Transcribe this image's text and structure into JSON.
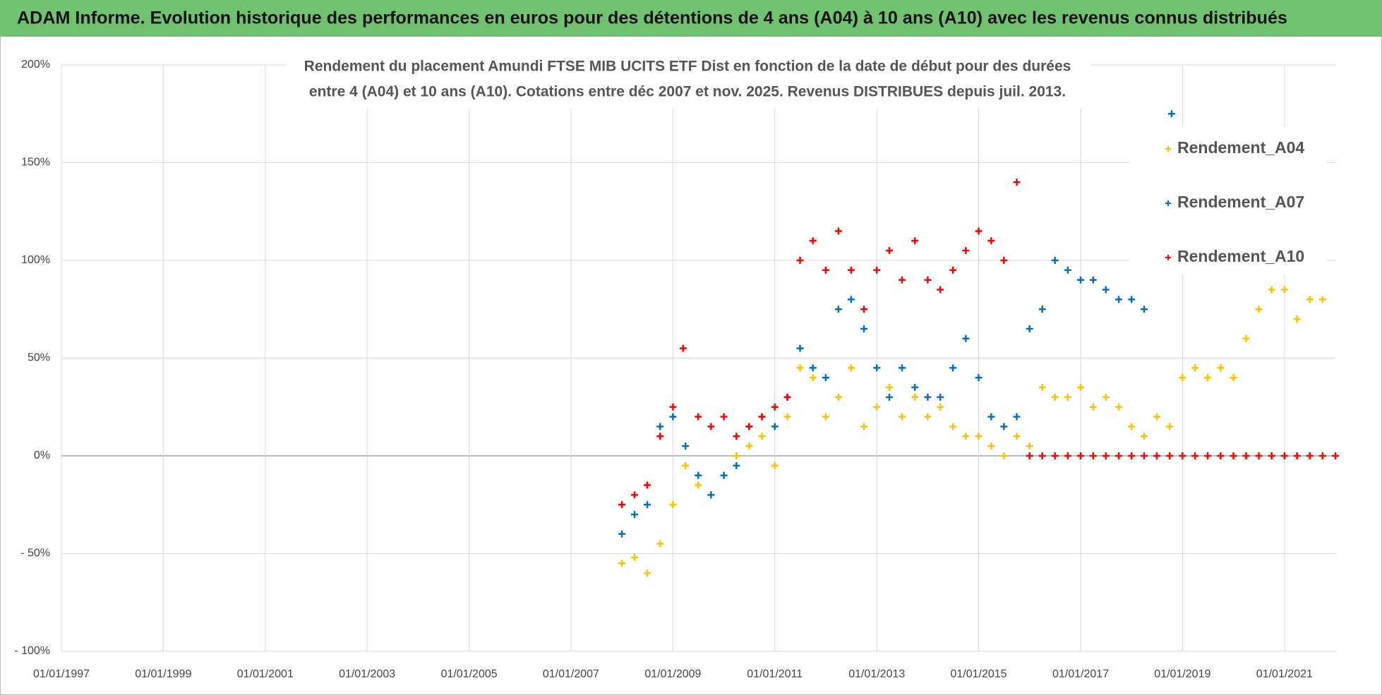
{
  "chart_data": {
    "type": "scatter",
    "title": "ADAM Informe. Evolution historique des performances en euros pour des détentions de 4 ans (A04) à 10 ans (A10) avec les revenus connus distribués",
    "subtitle": [
      "Rendement du placement Amundi FTSE MIB UCITS ETF Dist en fonction de la date de début pour des durées",
      "entre 4 (A04) et 10 ans (A10). Cotations entre déc 2007 et nov. 2025. Revenus DISTRIBUES depuis juil. 2013."
    ],
    "xlim": [
      "1997-01-01",
      "2022-01-01"
    ],
    "xticks": [
      {
        "value": "1997-01-01",
        "label": "01/01/1997"
      },
      {
        "value": "1999-01-01",
        "label": "01/01/1999"
      },
      {
        "value": "2001-01-01",
        "label": "01/01/2001"
      },
      {
        "value": "2003-01-01",
        "label": "01/01/2003"
      },
      {
        "value": "2005-01-01",
        "label": "01/01/2005"
      },
      {
        "value": "2007-01-01",
        "label": "01/01/2007"
      },
      {
        "value": "2009-01-01",
        "label": "01/01/2009"
      },
      {
        "value": "2011-01-01",
        "label": "01/01/2011"
      },
      {
        "value": "2013-01-01",
        "label": "01/01/2013"
      },
      {
        "value": "2015-01-01",
        "label": "01/01/2015"
      },
      {
        "value": "2017-01-01",
        "label": "01/01/2017"
      },
      {
        "value": "2019-01-01",
        "label": "01/01/2019"
      },
      {
        "value": "2021-01-01",
        "label": "01/01/2021"
      }
    ],
    "ylim": [
      -100,
      200
    ],
    "yticks": [
      {
        "value": -100,
        "label": "- 100%"
      },
      {
        "value": -50,
        "label": "- 50%"
      },
      {
        "value": 0,
        "label": "0%"
      },
      {
        "value": 50,
        "label": "50%"
      },
      {
        "value": 100,
        "label": "100%"
      },
      {
        "value": 150,
        "label": "150%"
      },
      {
        "value": 200,
        "label": "200%"
      }
    ],
    "grid": true,
    "legend": "upper right",
    "series": [
      {
        "name": "Rendement_A04",
        "color": "#ffc000",
        "x": [
          "2008-01-01",
          "2008-04-01",
          "2008-07-01",
          "2008-10-01",
          "2009-01-01",
          "2009-04-01",
          "2009-07-01",
          "2009-10-01",
          "2010-01-01",
          "2010-04-01",
          "2010-07-01",
          "2010-10-01",
          "2011-01-01",
          "2011-04-01",
          "2011-07-01",
          "2011-10-01",
          "2012-01-01",
          "2012-04-01",
          "2012-07-01",
          "2012-10-01",
          "2013-01-01",
          "2013-04-01",
          "2013-07-01",
          "2013-10-01",
          "2014-01-01",
          "2014-04-01",
          "2014-07-01",
          "2014-10-01",
          "2015-01-01",
          "2015-04-01",
          "2015-07-01",
          "2015-10-01",
          "2016-01-01",
          "2016-04-01",
          "2016-07-01",
          "2016-10-01",
          "2017-01-01",
          "2017-04-01",
          "2017-07-01",
          "2017-10-01",
          "2018-01-01",
          "2018-04-01",
          "2018-07-01",
          "2018-10-01",
          "2019-01-01",
          "2019-04-01",
          "2019-07-01",
          "2019-10-01",
          "2020-01-01",
          "2020-04-01",
          "2020-07-01",
          "2020-10-01",
          "2021-01-01",
          "2021-04-01",
          "2021-07-01",
          "2021-10-01"
        ],
        "values": [
          -55,
          -52,
          -60,
          -45,
          -25,
          -5,
          -15,
          -20,
          -10,
          0,
          5,
          10,
          -5,
          20,
          45,
          40,
          20,
          30,
          45,
          15,
          25,
          35,
          20,
          30,
          20,
          25,
          15,
          10,
          10,
          5,
          0,
          10,
          5,
          35,
          30,
          30,
          35,
          25,
          30,
          25,
          15,
          10,
          20,
          15,
          40,
          45,
          40,
          45,
          40,
          60,
          75,
          85,
          85,
          70,
          80,
          80
        ]
      },
      {
        "name": "Rendement_A07",
        "color": "#0070c0",
        "x": [
          "2008-01-01",
          "2008-04-01",
          "2008-07-01",
          "2008-10-01",
          "2009-01-01",
          "2009-04-01",
          "2009-07-01",
          "2009-10-01",
          "2010-01-01",
          "2010-04-01",
          "2010-07-01",
          "2010-10-01",
          "2011-01-01",
          "2011-04-01",
          "2011-07-01",
          "2011-10-01",
          "2012-01-01",
          "2012-04-01",
          "2012-07-01",
          "2012-10-01",
          "2013-01-01",
          "2013-04-01",
          "2013-07-01",
          "2013-10-01",
          "2014-01-01",
          "2014-04-01",
          "2014-07-01",
          "2014-10-01",
          "2015-01-01",
          "2015-04-01",
          "2015-07-01",
          "2015-10-01",
          "2016-01-01",
          "2016-04-01",
          "2016-07-01",
          "2016-10-01",
          "2017-01-01",
          "2017-04-01",
          "2017-07-01",
          "2017-10-01",
          "2018-01-01",
          "2018-04-01",
          "2018-10-15"
        ],
        "values": [
          -40,
          -30,
          -25,
          15,
          20,
          5,
          -10,
          -20,
          -10,
          -5,
          15,
          20,
          15,
          30,
          55,
          45,
          40,
          75,
          80,
          65,
          45,
          30,
          45,
          35,
          30,
          30,
          45,
          60,
          40,
          20,
          15,
          20,
          65,
          75,
          100,
          95,
          90,
          90,
          85,
          80,
          80,
          75,
          175
        ]
      },
      {
        "name": "Rendement_A10",
        "color": "#ff0000",
        "x": [
          "2008-01-01",
          "2008-04-01",
          "2008-07-01",
          "2008-10-01",
          "2009-01-01",
          "2009-03-15",
          "2009-07-01",
          "2009-10-01",
          "2010-01-01",
          "2010-04-01",
          "2010-07-01",
          "2010-10-01",
          "2011-01-01",
          "2011-04-01",
          "2011-07-01",
          "2011-10-01",
          "2012-01-01",
          "2012-04-01",
          "2012-07-01",
          "2012-10-01",
          "2013-01-01",
          "2013-04-01",
          "2013-07-01",
          "2013-10-01",
          "2014-01-01",
          "2014-04-01",
          "2014-07-01",
          "2014-10-01",
          "2015-01-01",
          "2015-04-01",
          "2015-07-01",
          "2015-10-01",
          "2016-01-01",
          "2016-04-01",
          "2016-07-01",
          "2016-10-01",
          "2017-01-01",
          "2017-04-01",
          "2017-07-01",
          "2017-10-01",
          "2018-01-01",
          "2018-04-01",
          "2018-07-01",
          "2018-10-01",
          "2019-01-01",
          "2019-04-01",
          "2019-07-01",
          "2019-10-01",
          "2020-01-01",
          "2020-04-01",
          "2020-07-01",
          "2020-10-01",
          "2021-01-01",
          "2021-04-01",
          "2021-07-01",
          "2021-10-01",
          "2022-01-01"
        ],
        "values": [
          -25,
          -20,
          -15,
          10,
          25,
          55,
          20,
          15,
          20,
          10,
          15,
          20,
          25,
          30,
          100,
          110,
          95,
          115,
          95,
          75,
          95,
          105,
          90,
          110,
          90,
          85,
          95,
          105,
          115,
          110,
          100,
          140,
          0,
          0,
          0,
          0,
          0,
          0,
          0,
          0,
          0,
          0,
          0,
          0,
          0,
          0,
          0,
          0,
          0,
          0,
          0,
          0,
          0,
          0,
          0,
          0,
          0
        ]
      }
    ]
  }
}
